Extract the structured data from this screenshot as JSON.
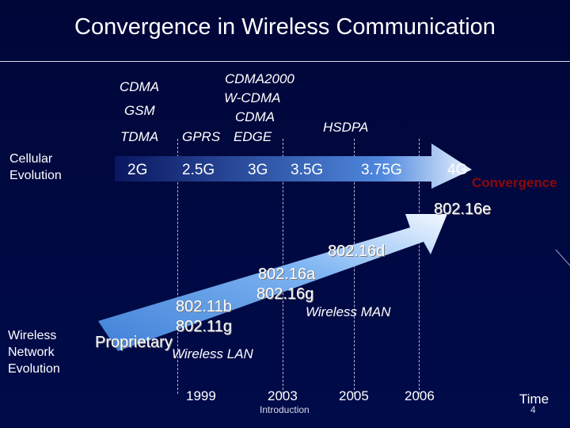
{
  "slide": {
    "title": "Convergence in Wireless Communication",
    "footer": "Introduction",
    "page_number": "4"
  },
  "labels": {
    "cellular_evolution": [
      "Cellular",
      "Evolution"
    ],
    "wireless_network_evolution": [
      "Wireless",
      "Network",
      "Evolution"
    ],
    "time": "Time",
    "convergence": "Convergence"
  },
  "cellular": {
    "standards": {
      "cdma": "CDMA",
      "gsm": "GSM",
      "tdma": "TDMA",
      "gprs": "GPRS",
      "edge": "EDGE",
      "cdma2000": "CDMA2000",
      "wcdma": "W-CDMA",
      "cdma_3g": "CDMA",
      "hsdpa": "HSDPA"
    },
    "generations": [
      "2G",
      "2.5G",
      "3G",
      "3.5G",
      "3.75G",
      "4G"
    ]
  },
  "wireless_network": {
    "standards": {
      "s80216e": "802.16e",
      "s80216d": "802.16d",
      "s80216a": "802.16a",
      "s80216g": "802.16g",
      "wireless_man": "Wireless MAN",
      "s80211b": "802.11b",
      "s80211g": "802.11g",
      "proprietary": "Proprietary",
      "wireless_lan": "Wireless LAN"
    }
  },
  "timeline": {
    "years": [
      "1999",
      "2003",
      "2005",
      "2006"
    ]
  },
  "colors": {
    "background": "#000638",
    "arrow_fill": "#6aa6f0",
    "arrow_light": "#e9f3ff",
    "convergence_text": "#8b0a0a"
  }
}
